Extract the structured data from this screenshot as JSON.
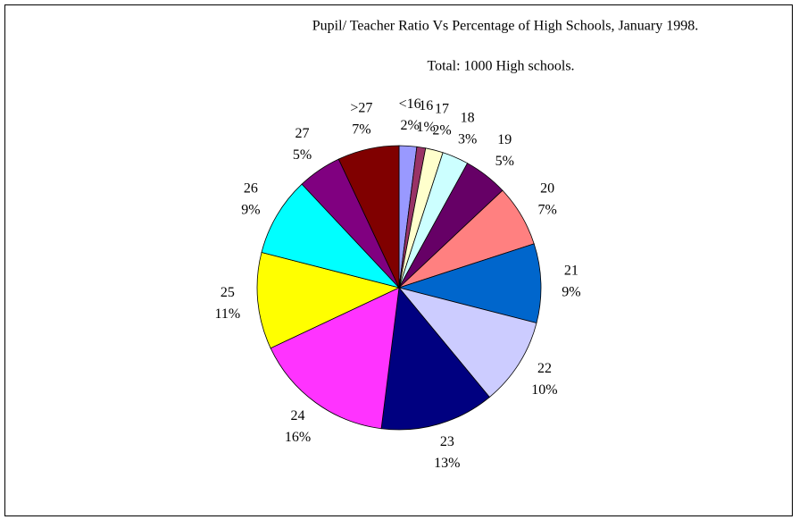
{
  "chart_data": {
    "type": "pie",
    "title": "Pupil/ Teacher Ratio Vs Percentage of High Schools, January 1998.",
    "subtitle": "Total: 1000 High schools.",
    "categories": [
      "<16",
      "16",
      "17",
      "18",
      "19",
      "20",
      "21",
      "22",
      "23",
      "24",
      "25",
      "26",
      "27",
      ">27"
    ],
    "values": [
      2,
      1,
      2,
      3,
      5,
      7,
      9,
      10,
      13,
      16,
      11,
      9,
      5,
      7
    ],
    "value_labels": [
      "2%",
      "1%",
      "2%",
      "3%",
      "5%",
      "7%",
      "9%",
      "10%",
      "13%",
      "16%",
      "11%",
      "9%",
      "5%",
      "7%"
    ],
    "colors": [
      "#9999ff",
      "#993366",
      "#ffffcc",
      "#ccffff",
      "#660066",
      "#ff8080",
      "#0066cc",
      "#ccccff",
      "#000080",
      "#ff33ff",
      "#ffff00",
      "#00ffff",
      "#800080",
      "#800000"
    ]
  }
}
